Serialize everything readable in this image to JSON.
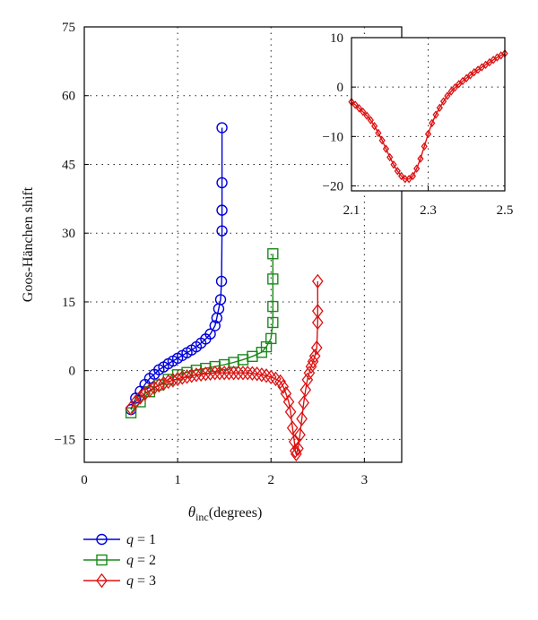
{
  "chart_data": [
    {
      "type": "line",
      "title": "",
      "xlabel": "θinc (degrees)",
      "xlabel_symbol": "θ",
      "xlabel_subscript": "inc",
      "xlabel_rest": "(degrees)",
      "ylabel": "Goos-Hänchen shift",
      "xlim": [
        0,
        3.4
      ],
      "ylim": [
        -20,
        75
      ],
      "xticks": [
        0,
        1,
        2,
        3
      ],
      "xtick_labels": [
        "0",
        "1",
        "2",
        "3"
      ],
      "yticks": [
        -15,
        0,
        15,
        30,
        45,
        60,
        75
      ],
      "ytick_labels": [
        "−15",
        "0",
        "15",
        "30",
        "45",
        "60",
        "75"
      ],
      "grid": true,
      "legend_position": "below-left",
      "series": [
        {
          "name": "q = 1",
          "legend_italic": "q",
          "legend_rest": " = 1",
          "color": "#0000dd",
          "marker": "circle",
          "x": [
            0.5,
            0.55,
            0.6,
            0.65,
            0.7,
            0.75,
            0.8,
            0.85,
            0.9,
            0.95,
            1.0,
            1.05,
            1.1,
            1.15,
            1.2,
            1.25,
            1.3,
            1.35,
            1.4,
            1.42,
            1.44,
            1.46,
            1.47,
            1.475,
            1.475,
            1.475,
            1.475
          ],
          "values": [
            -8.5,
            -6.0,
            -4.5,
            -3.0,
            -1.7,
            -0.8,
            0.2,
            0.8,
            1.5,
            2.1,
            2.7,
            3.3,
            3.9,
            4.5,
            5.2,
            6.0,
            6.9,
            8.0,
            9.8,
            11.5,
            13.5,
            15.5,
            19.5,
            30.5,
            35.0,
            41.0,
            53.0
          ]
        },
        {
          "name": "q = 2",
          "legend_italic": "q",
          "legend_rest": " = 2",
          "color": "#1a8a1a",
          "marker": "square",
          "x": [
            0.5,
            0.6,
            0.7,
            0.8,
            0.9,
            1.0,
            1.1,
            1.2,
            1.3,
            1.4,
            1.5,
            1.6,
            1.7,
            1.8,
            1.9,
            1.95,
            2.0,
            2.02,
            2.02,
            2.02,
            2.02
          ],
          "values": [
            -9.2,
            -6.8,
            -4.6,
            -3.1,
            -1.9,
            -0.9,
            -0.4,
            0.1,
            0.5,
            0.9,
            1.3,
            1.8,
            2.4,
            3.1,
            4.0,
            5.2,
            7.0,
            10.5,
            14.0,
            20.0,
            25.5
          ]
        },
        {
          "name": "q = 3",
          "legend_italic": "q",
          "legend_rest": " = 3",
          "color": "#dd1111",
          "marker": "diamond",
          "x": [
            0.5,
            0.55,
            0.6,
            0.65,
            0.7,
            0.75,
            0.8,
            0.85,
            0.9,
            0.95,
            1.0,
            1.05,
            1.1,
            1.15,
            1.2,
            1.25,
            1.3,
            1.35,
            1.4,
            1.45,
            1.5,
            1.55,
            1.6,
            1.65,
            1.7,
            1.75,
            1.8,
            1.85,
            1.9,
            1.95,
            2.0,
            2.05,
            2.1,
            2.13,
            2.16,
            2.19,
            2.21,
            2.23,
            2.25,
            2.26,
            2.27,
            2.29,
            2.31,
            2.33,
            2.35,
            2.37,
            2.39,
            2.41,
            2.43,
            2.45,
            2.47,
            2.49,
            2.5,
            2.5,
            2.5
          ],
          "values": [
            -8.2,
            -6.8,
            -5.8,
            -5.0,
            -4.3,
            -3.7,
            -3.2,
            -2.8,
            -2.4,
            -2.1,
            -1.8,
            -1.5,
            -1.3,
            -1.1,
            -0.9,
            -0.8,
            -0.7,
            -0.6,
            -0.5,
            -0.5,
            -0.5,
            -0.5,
            -0.5,
            -0.5,
            -0.5,
            -0.5,
            -0.6,
            -0.7,
            -0.9,
            -1.1,
            -1.4,
            -1.8,
            -2.4,
            -3.5,
            -5.0,
            -6.8,
            -9.0,
            -12.5,
            -15.5,
            -17.5,
            -18.2,
            -17.0,
            -14.0,
            -10.5,
            -7.0,
            -4.2,
            -2.0,
            -0.5,
            0.9,
            2.0,
            3.2,
            5.0,
            10.5,
            13.0,
            19.5
          ]
        }
      ]
    },
    {
      "type": "line",
      "title": "",
      "xlabel": "",
      "ylabel": "",
      "xlim": [
        2.1,
        2.5
      ],
      "ylim": [
        -21,
        10
      ],
      "xticks": [
        2.1,
        2.3,
        2.5
      ],
      "xtick_labels": [
        "2.1",
        "2.3",
        "2.5"
      ],
      "yticks": [
        -20,
        -10,
        0,
        10
      ],
      "ytick_labels": [
        "−20",
        "−10",
        "0",
        "10"
      ],
      "grid": true,
      "series": [
        {
          "color": "#dd1111",
          "marker": "diamond",
          "x": [
            2.1,
            2.11,
            2.12,
            2.13,
            2.14,
            2.15,
            2.16,
            2.17,
            2.18,
            2.19,
            2.2,
            2.21,
            2.22,
            2.23,
            2.24,
            2.25,
            2.26,
            2.27,
            2.28,
            2.29,
            2.3,
            2.31,
            2.32,
            2.33,
            2.34,
            2.35,
            2.36,
            2.37,
            2.38,
            2.39,
            2.4,
            2.41,
            2.42,
            2.43,
            2.44,
            2.45,
            2.46,
            2.47,
            2.48,
            2.49,
            2.5
          ],
          "values": [
            -3.0,
            -3.6,
            -4.3,
            -5.0,
            -5.8,
            -6.7,
            -7.9,
            -9.3,
            -10.8,
            -12.5,
            -14.2,
            -15.7,
            -17.0,
            -18.0,
            -18.6,
            -18.6,
            -18.0,
            -16.5,
            -14.5,
            -12.0,
            -9.5,
            -7.3,
            -5.6,
            -4.2,
            -2.9,
            -1.8,
            -0.9,
            -0.1,
            0.6,
            1.2,
            1.8,
            2.4,
            3.0,
            3.5,
            4.0,
            4.5,
            5.0,
            5.5,
            6.0,
            6.4,
            6.8
          ]
        }
      ]
    }
  ]
}
